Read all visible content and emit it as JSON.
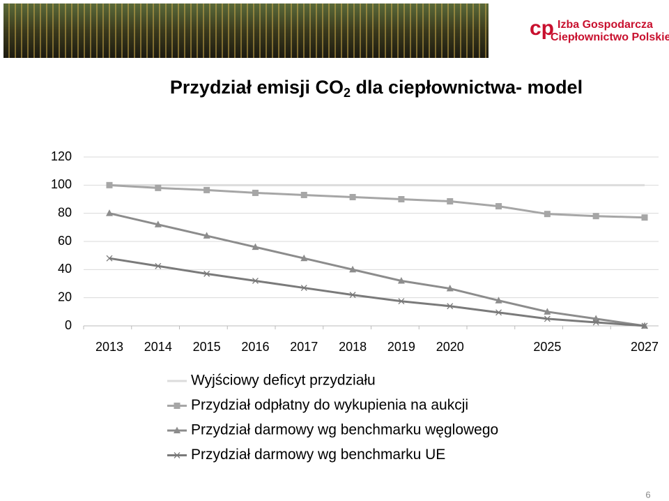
{
  "header": {
    "logo_line1": "Izba Gospodarcza",
    "logo_line2": "Ciepłownictwo Polskie"
  },
  "page_number": "6",
  "chart_data": {
    "type": "line",
    "title_parts": [
      "Przydział emisji CO",
      "2",
      " dla ciepłownictwa- model"
    ],
    "categories": [
      "2013",
      "2014",
      "2015",
      "2016",
      "2017",
      "2018",
      "2019",
      "2020",
      null,
      "2025",
      null,
      "2027"
    ],
    "series": [
      {
        "name": "Wyjściowy deficyt przydziału",
        "color": "#dcdcdc",
        "marker": "none",
        "values": [
          100,
          100,
          100,
          100,
          100,
          100,
          100,
          100,
          100,
          100,
          100,
          100
        ]
      },
      {
        "name": "Przydział odpłatny do wykupienia na aukcji",
        "color": "#a6a6a6",
        "marker": "square",
        "values": [
          100,
          98,
          96.5,
          94.5,
          93,
          91.5,
          90,
          88.5,
          85,
          79.5,
          78,
          77
        ]
      },
      {
        "name": "Przydział darmowy wg benchmarku węglowego",
        "color": "#8c8c8c",
        "marker": "triangle",
        "values": [
          80,
          72,
          64,
          56,
          48,
          40,
          32,
          26.5,
          18,
          10,
          5,
          0
        ]
      },
      {
        "name": "Przydział darmowy wg benchmarku UE",
        "color": "#7a7a7a",
        "marker": "x",
        "values": [
          48,
          42.5,
          37,
          32,
          27,
          22,
          17.5,
          14,
          9.5,
          5,
          2.5,
          0
        ]
      }
    ],
    "ylim": [
      0,
      120
    ],
    "yticks": [
      0,
      20,
      40,
      60,
      80,
      100,
      120
    ],
    "grid": true,
    "legend": "bottom"
  }
}
